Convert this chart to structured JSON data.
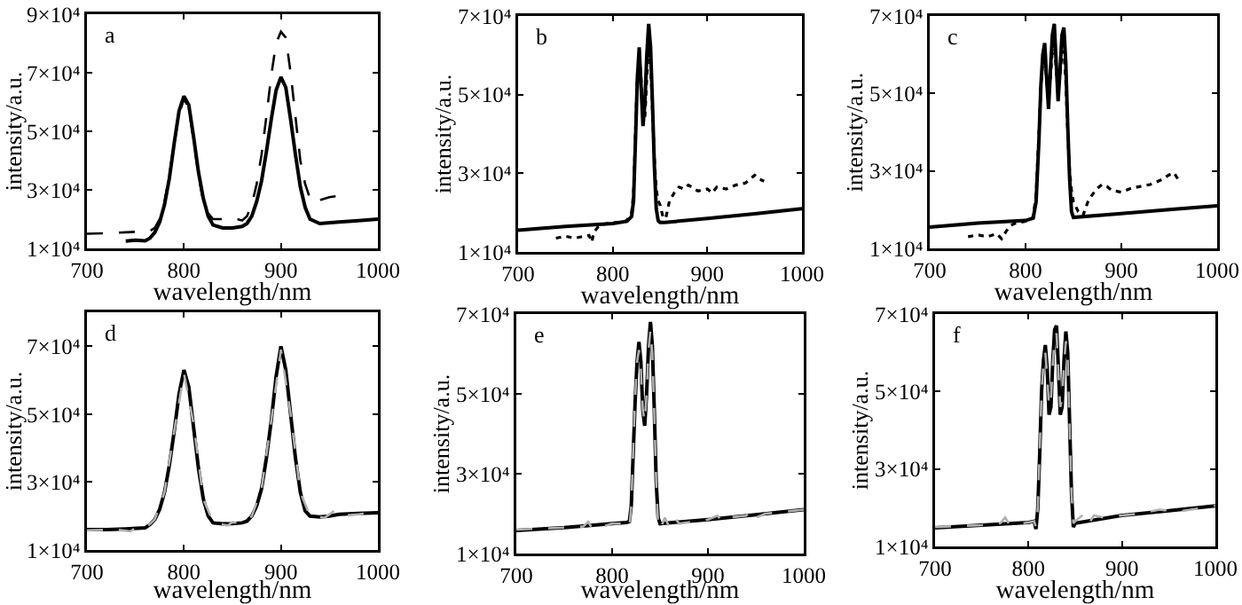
{
  "chart_data": [
    {
      "type": "line",
      "xlabel": "wavelength/nm",
      "ylabel": "intensity/a.u.",
      "annotations": [
        "a"
      ],
      "xlim": [
        700,
        1000
      ],
      "xticks": [
        700,
        800,
        900,
        1000
      ],
      "ylim": [
        10000,
        90000
      ],
      "yticks": [
        {
          "value": 10000,
          "label": "1×10⁴"
        },
        {
          "value": 30000,
          "label": "3×10⁴"
        },
        {
          "value": 50000,
          "label": "5×10⁴"
        },
        {
          "value": 70000,
          "label": "7×10⁴"
        },
        {
          "value": 90000,
          "label": "9×10⁴"
        }
      ],
      "grid": false,
      "series": [
        {
          "color": "#000000",
          "line_style": "solid",
          "x": [
            740,
            750,
            760,
            765,
            770,
            775,
            780,
            785,
            790,
            795,
            800,
            805,
            810,
            815,
            820,
            825,
            830,
            840,
            850,
            860,
            865,
            870,
            875,
            880,
            885,
            890,
            895,
            900,
            905,
            910,
            915,
            920,
            925,
            930,
            940,
            960,
            980,
            1000
          ],
          "values": [
            12500,
            12800,
            12600,
            13500,
            15500,
            19000,
            25000,
            34000,
            46000,
            57000,
            62000,
            59000,
            48000,
            36000,
            27000,
            21000,
            18000,
            17000,
            17000,
            17500,
            18500,
            21000,
            26000,
            33000,
            43000,
            54000,
            64000,
            68500,
            65000,
            54000,
            42000,
            31000,
            24000,
            20000,
            18500,
            19000,
            19500,
            20000
          ]
        },
        {
          "color": "#000000",
          "line_style": "dashed",
          "x": [
            700,
            720,
            740,
            760,
            765,
            770,
            775,
            780,
            785,
            790,
            795,
            800,
            805,
            810,
            815,
            820,
            825,
            830,
            840,
            850,
            860,
            865,
            870,
            875,
            880,
            885,
            890,
            895,
            900,
            905,
            910,
            915,
            920,
            925,
            930,
            935,
            940,
            950,
            960
          ],
          "values": [
            15000,
            15200,
            15500,
            15800,
            16000,
            17000,
            20000,
            26000,
            35000,
            46000,
            56000,
            61000,
            58000,
            47000,
            35000,
            26000,
            22000,
            20000,
            20000,
            20500,
            19500,
            21000,
            25000,
            32000,
            42000,
            55000,
            69000,
            80000,
            84000,
            82000,
            70000,
            55000,
            40000,
            32000,
            27000,
            25500,
            26500,
            27500,
            28000
          ]
        }
      ]
    },
    {
      "type": "line",
      "xlabel": "wavelength/nm",
      "ylabel": "intensity/a.u.",
      "annotations": [
        "b"
      ],
      "xlim": [
        700,
        1000
      ],
      "xticks": [
        700,
        800,
        900,
        1000
      ],
      "ylim": [
        10000,
        70000
      ],
      "yticks": [
        {
          "value": 10000,
          "label": "1×10⁴"
        },
        {
          "value": 30000,
          "label": "3×10⁴"
        },
        {
          "value": 50000,
          "label": "5×10⁴"
        },
        {
          "value": 70000,
          "label": "7×10⁴"
        }
      ],
      "grid": false,
      "series": [
        {
          "color": "#000000",
          "line_style": "solid",
          "x": [
            700,
            750,
            800,
            815,
            820,
            822,
            824,
            826,
            828,
            830,
            832,
            834,
            836,
            838,
            840,
            842,
            844,
            846,
            848,
            850,
            855,
            900,
            950,
            1000
          ],
          "values": [
            15500,
            16500,
            17200,
            17800,
            19000,
            23000,
            38000,
            54000,
            62000,
            52000,
            42000,
            48000,
            60000,
            68000,
            62000,
            48000,
            32000,
            21000,
            18000,
            17500,
            17500,
            18500,
            19700,
            21000
          ]
        },
        {
          "color": "#000000",
          "line_style": "dotted",
          "x": [
            740,
            750,
            760,
            770,
            775,
            778,
            780,
            785,
            790,
            800,
            810,
            815,
            820,
            822,
            824,
            826,
            828,
            830,
            832,
            834,
            836,
            838,
            840,
            842,
            844,
            846,
            848,
            850,
            853,
            856,
            860,
            865,
            870,
            875,
            880,
            890,
            900,
            905,
            910,
            920,
            930,
            940,
            950,
            955,
            960
          ],
          "values": [
            13500,
            14000,
            13500,
            14000,
            14200,
            12500,
            15000,
            16500,
            17000,
            17500,
            17500,
            18000,
            20000,
            25000,
            40000,
            55000,
            60000,
            54000,
            46000,
            44000,
            54000,
            62000,
            58000,
            46000,
            34000,
            26000,
            23000,
            22000,
            19000,
            18500,
            23000,
            25000,
            26500,
            26000,
            27000,
            25500,
            26000,
            25000,
            26500,
            26000,
            27000,
            27500,
            29500,
            28500,
            28000
          ]
        }
      ]
    },
    {
      "type": "line",
      "xlabel": "wavelength/nm",
      "ylabel": "intensity/a.u.",
      "annotations": [
        "c"
      ],
      "xlim": [
        700,
        1000
      ],
      "xticks": [
        700,
        800,
        900,
        1000
      ],
      "ylim": [
        10000,
        70000
      ],
      "yticks": [
        {
          "value": 10000,
          "label": "1×10⁴"
        },
        {
          "value": 30000,
          "label": "3×10⁴"
        },
        {
          "value": 50000,
          "label": "5×10⁴"
        },
        {
          "value": 70000,
          "label": "7×10⁴"
        }
      ],
      "grid": false,
      "series": [
        {
          "color": "#000000",
          "line_style": "solid",
          "x": [
            700,
            750,
            800,
            808,
            811,
            814,
            816,
            818,
            820,
            822,
            824,
            826,
            828,
            830,
            832,
            834,
            836,
            838,
            840,
            842,
            844,
            846,
            848,
            850,
            900,
            950,
            1000
          ],
          "values": [
            15500,
            16500,
            17200,
            17800,
            22000,
            38000,
            52000,
            60000,
            63000,
            54000,
            46000,
            56000,
            65000,
            68000,
            58000,
            48000,
            56000,
            65000,
            67000,
            58000,
            42000,
            28000,
            19500,
            18000,
            19000,
            20000,
            21000
          ]
        },
        {
          "color": "#000000",
          "line_style": "dotted",
          "x": [
            740,
            750,
            760,
            770,
            775,
            780,
            785,
            790,
            800,
            808,
            811,
            814,
            816,
            818,
            820,
            822,
            824,
            826,
            828,
            830,
            832,
            834,
            836,
            838,
            840,
            842,
            844,
            846,
            848,
            850,
            855,
            860,
            865,
            870,
            875,
            880,
            885,
            890,
            900,
            910,
            920,
            930,
            940,
            950,
            955,
            960
          ],
          "values": [
            13000,
            13500,
            13000,
            13800,
            12500,
            14500,
            16000,
            16500,
            17000,
            18000,
            24000,
            40000,
            52000,
            58000,
            60000,
            53000,
            48000,
            54000,
            61000,
            63000,
            56000,
            50000,
            55000,
            60000,
            61000,
            53000,
            40000,
            30000,
            25000,
            22000,
            19500,
            18500,
            22000,
            24000,
            25500,
            26500,
            26000,
            25000,
            24500,
            25500,
            26000,
            26500,
            27500,
            29000,
            29500,
            27500
          ]
        }
      ]
    },
    {
      "type": "line",
      "xlabel": "wavelength/nm",
      "ylabel": "intensity/a.u.",
      "annotations": [
        "d"
      ],
      "xlim": [
        700,
        1000
      ],
      "xticks": [
        700,
        800,
        900,
        1000
      ],
      "ylim": [
        10000,
        80000
      ],
      "yticks": [
        {
          "value": 10000,
          "label": "1×10⁴"
        },
        {
          "value": 30000,
          "label": "3×10⁴"
        },
        {
          "value": 50000,
          "label": "5×10⁴"
        },
        {
          "value": 70000,
          "label": "7×10⁴"
        }
      ],
      "grid": false,
      "series": [
        {
          "color": "#000000",
          "line_style": "solid",
          "x": [
            700,
            720,
            740,
            760,
            765,
            770,
            775,
            780,
            785,
            790,
            795,
            800,
            805,
            810,
            815,
            820,
            825,
            830,
            840,
            850,
            860,
            865,
            870,
            875,
            880,
            885,
            890,
            895,
            900,
            905,
            910,
            915,
            920,
            925,
            930,
            940,
            950,
            960,
            980,
            1000
          ],
          "values": [
            16000,
            16000,
            16200,
            16500,
            17500,
            19000,
            22000,
            27000,
            35000,
            45000,
            56000,
            63000,
            58000,
            46000,
            34000,
            25000,
            20000,
            18000,
            17700,
            17800,
            18000,
            18500,
            20000,
            23000,
            28000,
            37000,
            48000,
            61000,
            70000,
            63000,
            50000,
            37000,
            27000,
            21500,
            20000,
            19700,
            20000,
            20500,
            20800,
            21000
          ]
        },
        {
          "color": "#b0b0b0",
          "line_style": "dashed",
          "x": [
            700,
            730,
            745,
            750,
            760,
            770,
            780,
            790,
            800,
            810,
            820,
            830,
            845,
            850,
            860,
            870,
            880,
            890,
            900,
            910,
            920,
            930,
            945,
            955,
            960,
            980,
            1000
          ],
          "values": [
            15800,
            16000,
            15500,
            16500,
            16300,
            19000,
            27000,
            45000,
            62000,
            47000,
            25000,
            18200,
            17200,
            18200,
            17800,
            20000,
            28000,
            48000,
            69000,
            50000,
            27000,
            20000,
            19500,
            21500,
            20000,
            20500,
            21200
          ]
        }
      ]
    },
    {
      "type": "line",
      "xlabel": "wavelength/nm",
      "ylabel": "intensity/a.u.",
      "annotations": [
        "e"
      ],
      "xlim": [
        700,
        1000
      ],
      "xticks": [
        700,
        800,
        900,
        1000
      ],
      "ylim": [
        10000,
        70000
      ],
      "yticks": [
        {
          "value": 10000,
          "label": "1×10⁴"
        },
        {
          "value": 30000,
          "label": "3×10⁴"
        },
        {
          "value": 50000,
          "label": "5×10⁴"
        },
        {
          "value": 70000,
          "label": "7×10⁴"
        }
      ],
      "grid": false,
      "series": [
        {
          "color": "#000000",
          "line_style": "solid",
          "x": [
            700,
            750,
            800,
            815,
            818,
            820,
            822,
            824,
            826,
            828,
            830,
            832,
            834,
            836,
            838,
            840,
            842,
            844,
            846,
            848,
            850,
            900,
            950,
            1000
          ],
          "values": [
            15800,
            16500,
            17500,
            17800,
            18000,
            22000,
            35000,
            48000,
            58000,
            63000,
            58000,
            46000,
            42000,
            50000,
            62000,
            68000,
            62000,
            46000,
            28000,
            19000,
            17500,
            18500,
            19700,
            21000
          ]
        },
        {
          "color": "#b0b0b0",
          "line_style": "dashed",
          "x": [
            700,
            750,
            770,
            775,
            780,
            800,
            815,
            818,
            820,
            822,
            824,
            826,
            828,
            830,
            832,
            834,
            836,
            838,
            840,
            842,
            844,
            846,
            848,
            850,
            855,
            860,
            865,
            870,
            900,
            910,
            915,
            920,
            940,
            945,
            950,
            960,
            1000
          ],
          "values": [
            16000,
            16500,
            16800,
            18000,
            16000,
            17500,
            17500,
            16500,
            22000,
            36000,
            49000,
            58000,
            61000,
            56000,
            46000,
            43000,
            50000,
            61000,
            66000,
            60000,
            45000,
            28000,
            17000,
            16000,
            19000,
            16500,
            19000,
            17500,
            18500,
            19500,
            18000,
            19000,
            19500,
            21000,
            19000,
            20000,
            21000
          ]
        }
      ]
    },
    {
      "type": "line",
      "xlabel": "wavelength/nm",
      "ylabel": "intensity/a.u.",
      "annotations": [
        "f"
      ],
      "xlim": [
        700,
        1000
      ],
      "xticks": [
        700,
        800,
        900,
        1000
      ],
      "ylim": [
        10000,
        70000
      ],
      "yticks": [
        {
          "value": 10000,
          "label": "1×10⁴"
        },
        {
          "value": 30000,
          "label": "3×10⁴"
        },
        {
          "value": 50000,
          "label": "5×10⁴"
        },
        {
          "value": 70000,
          "label": "7×10⁴"
        }
      ],
      "grid": false,
      "series": [
        {
          "color": "#000000",
          "line_style": "solid",
          "x": [
            700,
            750,
            800,
            806,
            808,
            810,
            812,
            814,
            816,
            818,
            820,
            822,
            824,
            826,
            828,
            830,
            832,
            834,
            836,
            838,
            840,
            842,
            844,
            846,
            848,
            850,
            900,
            950,
            1000
          ],
          "values": [
            14800,
            15500,
            16200,
            16500,
            14500,
            20000,
            34000,
            50000,
            58000,
            62000,
            56000,
            44000,
            46000,
            58000,
            66000,
            67000,
            56000,
            44000,
            46000,
            58000,
            65500,
            60000,
            42000,
            24000,
            15000,
            16000,
            18000,
            19200,
            20500
          ]
        },
        {
          "color": "#b0b0b0",
          "line_style": "dashed",
          "x": [
            700,
            750,
            770,
            775,
            780,
            800,
            806,
            808,
            810,
            812,
            814,
            816,
            818,
            820,
            822,
            824,
            826,
            828,
            830,
            832,
            834,
            836,
            838,
            840,
            842,
            844,
            846,
            848,
            850,
            860,
            865,
            870,
            880,
            900,
            920,
            940,
            960,
            1000
          ],
          "values": [
            15000,
            15500,
            16000,
            17500,
            15500,
            16200,
            16500,
            15000,
            20000,
            35000,
            50000,
            57000,
            60000,
            54000,
            46000,
            48000,
            57000,
            64000,
            65000,
            55000,
            46000,
            48000,
            57000,
            63000,
            58000,
            41000,
            24000,
            16000,
            16500,
            18500,
            16000,
            18000,
            17500,
            18000,
            18500,
            19500,
            19000,
            20500
          ]
        }
      ]
    }
  ]
}
